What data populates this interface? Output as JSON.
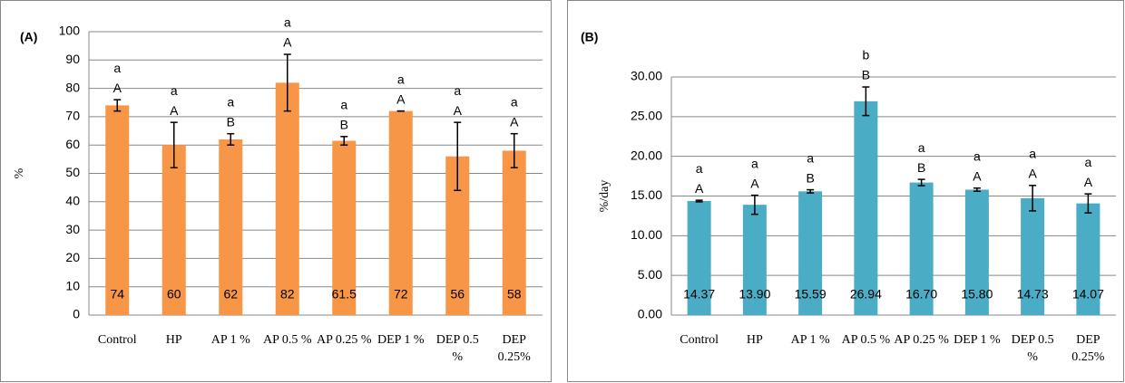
{
  "chart_data": [
    {
      "type": "bar",
      "label": "(A)",
      "ylabel": "%",
      "color": "#f79646",
      "categories": [
        "Control",
        "HP",
        "AP 1 %",
        "AP 0.5 %",
        "AP 0.25 %",
        "DEP 1 %",
        "DEP 0.5 %",
        "DEP 0.25%"
      ],
      "values": [
        74,
        60,
        62,
        82,
        61.5,
        72,
        56,
        58
      ],
      "errors": [
        2,
        8,
        2,
        10,
        1.5,
        0,
        12,
        6
      ],
      "letters_lower": [
        "a",
        "a",
        "a",
        "a",
        "a",
        "a",
        "a",
        "a"
      ],
      "letters_upper": [
        "A",
        "A",
        "B",
        "A",
        "B",
        "A",
        "A",
        "A"
      ],
      "ylim": [
        0,
        100
      ],
      "yticks": [
        0,
        10,
        20,
        30,
        40,
        50,
        60,
        70,
        80,
        90,
        100
      ],
      "grid": true
    },
    {
      "type": "bar",
      "label": "(B)",
      "ylabel": "%/day",
      "color": "#4bacc6",
      "categories": [
        "Control",
        "HP",
        "AP 1 %",
        "AP 0.5 %",
        "AP 0.25 %",
        "DEP 1 %",
        "DEP 0.5 %",
        "DEP 0.25%"
      ],
      "values": [
        14.37,
        13.9,
        15.59,
        26.94,
        16.7,
        15.8,
        14.73,
        14.07
      ],
      "value_labels": [
        "14.37",
        "13.90",
        "15.59",
        "26.94",
        "16.70",
        "15.80",
        "14.73",
        "14.07"
      ],
      "errors": [
        0.1,
        1.2,
        0.2,
        1.8,
        0.4,
        0.2,
        1.6,
        1.2
      ],
      "letters_lower": [
        "a",
        "a",
        "a",
        "b",
        "a",
        "a",
        "a",
        "a"
      ],
      "letters_upper": [
        "A",
        "A",
        "B",
        "B",
        "B",
        "A",
        "A",
        "A"
      ],
      "ylim": [
        0,
        30
      ],
      "yticks": [
        {
          "value": 0,
          "label": "0.00"
        },
        {
          "value": 5,
          "label": "5.00"
        },
        {
          "value": 10,
          "label": "10.00"
        },
        {
          "value": 15,
          "label": "15.00"
        },
        {
          "value": 20,
          "label": "20.00"
        },
        {
          "value": 25,
          "label": "25.00"
        },
        {
          "value": 30,
          "label": "30.00"
        }
      ],
      "grid": true
    }
  ]
}
